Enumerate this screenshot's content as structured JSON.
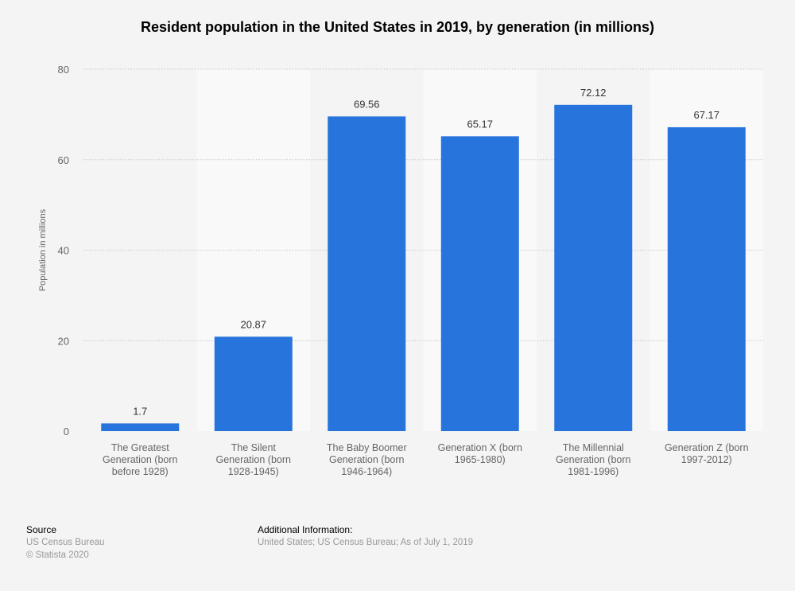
{
  "chart_data": {
    "type": "bar",
    "title": "Resident population in the United States in 2019, by generation (in millions)",
    "xlabel": "",
    "ylabel": "Population in millions",
    "ylim": [
      0,
      80
    ],
    "yticks": [
      0,
      20,
      40,
      60,
      80
    ],
    "grid": true,
    "categories": [
      [
        "The Greatest",
        "Generation (born",
        "before 1928)"
      ],
      [
        "The Silent",
        "Generation (born",
        "1928-1945)"
      ],
      [
        "The Baby Boomer",
        "Generation (born",
        "1946-1964)"
      ],
      [
        "Generation X (born",
        "1965-1980)"
      ],
      [
        "The Millennial",
        "Generation (born",
        "1981-1996)"
      ],
      [
        "Generation Z (born",
        "1997-2012)"
      ]
    ],
    "values": [
      1.7,
      20.87,
      69.56,
      65.17,
      72.12,
      67.17
    ],
    "data_labels": [
      "1.7",
      "20.87",
      "69.56",
      "65.17",
      "72.12",
      "67.17"
    ],
    "bar_color": "#2775dc"
  },
  "footer": {
    "source_heading": "Source",
    "source": "US Census Bureau",
    "copyright": "© Statista 2020",
    "additional_heading": "Additional Information:",
    "additional": "United States; US Census Bureau; As of July 1, 2019"
  }
}
